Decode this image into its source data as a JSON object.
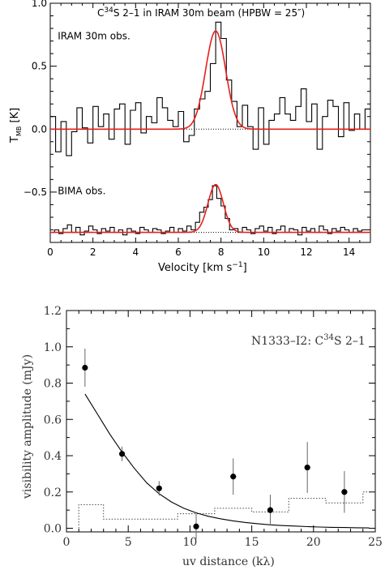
{
  "chart_data": [
    {
      "type": "line",
      "title": "C³⁴S 2–1 in IRAM 30m beam (HPBW = 25″)",
      "title_parts": {
        "pre": "C",
        "sup": "34",
        "post": "S 2–1 in IRAM 30m beam (HPBW = 25″)"
      },
      "xlabel": "Velocity [km s⁻¹]",
      "xlabel_parts": {
        "pre": "Velocity [km s",
        "sup": "−1",
        "post": "]"
      },
      "ylabel": "T_MB [K]",
      "ylabel_parts": {
        "main": "T",
        "sub": "MB",
        "post": " [K]"
      },
      "xlim": [
        0,
        15
      ],
      "ylim": [
        -0.9,
        1.0
      ],
      "x_ticks": [
        0,
        2,
        4,
        6,
        8,
        10,
        12,
        14
      ],
      "y_ticks": [
        {
          "v": 1.0,
          "label": "1.0"
        },
        {
          "v": 0.5,
          "label": "0.5"
        },
        {
          "v": 0.0,
          "label": "0.0"
        },
        {
          "v": -0.5,
          "label": "−0.5"
        }
      ],
      "annotations": [
        {
          "text": "IRAM 30m obs.",
          "x": 0.35,
          "y": 0.74
        },
        {
          "text": "BIMA obs.",
          "x": 0.35,
          "y": -0.49
        }
      ],
      "series": [
        {
          "role": "observed",
          "label": "IRAM 30m obs.",
          "color": "#000000",
          "x": [
            0.0,
            0.25,
            0.5,
            0.75,
            1.0,
            1.25,
            1.5,
            1.75,
            2.0,
            2.25,
            2.5,
            2.75,
            3.0,
            3.25,
            3.5,
            3.75,
            4.0,
            4.25,
            4.5,
            4.75,
            5.0,
            5.25,
            5.5,
            5.75,
            6.0,
            6.25,
            6.5,
            6.75,
            7.0,
            7.25,
            7.5,
            7.75,
            8.0,
            8.25,
            8.5,
            8.75,
            9.0,
            9.25,
            9.5,
            9.75,
            10.0,
            10.25,
            10.5,
            10.75,
            11.0,
            11.25,
            11.5,
            11.75,
            12.0,
            12.25,
            12.5,
            12.75,
            13.0,
            13.25,
            13.5,
            13.75,
            14.0,
            14.25,
            14.5,
            14.75
          ],
          "y": [
            0.1,
            -0.18,
            0.06,
            -0.21,
            -0.02,
            0.17,
            0.01,
            -0.11,
            0.18,
            0.02,
            0.12,
            -0.08,
            0.16,
            0.2,
            -0.12,
            0.15,
            0.21,
            -0.03,
            0.1,
            0.05,
            0.25,
            0.17,
            0.07,
            0.02,
            0.14,
            -0.1,
            -0.05,
            0.16,
            0.24,
            0.3,
            0.52,
            0.85,
            0.72,
            0.39,
            0.22,
            0.02,
            0.19,
            0.02,
            -0.16,
            0.17,
            -0.12,
            0.07,
            0.12,
            0.25,
            0.12,
            0.07,
            0.18,
            0.32,
            0.06,
            0.2,
            -0.16,
            0.1,
            0.23,
            0.18,
            -0.06,
            0.21,
            -0.01,
            0.12,
            0.0,
            0.16
          ]
        },
        {
          "role": "model",
          "label": "IRAM 30m model",
          "color": "#e8201c",
          "amplitude": 0.78,
          "center": 7.75,
          "fwhm": 1.1
        },
        {
          "role": "observed",
          "label": "BIMA obs.",
          "color": "#000000",
          "x": [
            0.0,
            0.2,
            0.4,
            0.6,
            0.8,
            1.0,
            1.2,
            1.4,
            1.6,
            1.8,
            2.0,
            2.2,
            2.4,
            2.6,
            2.8,
            3.0,
            3.2,
            3.4,
            3.6,
            3.8,
            4.0,
            4.2,
            4.4,
            4.6,
            4.8,
            5.0,
            5.2,
            5.4,
            5.6,
            5.8,
            6.0,
            6.2,
            6.4,
            6.6,
            6.8,
            7.0,
            7.2,
            7.4,
            7.6,
            7.8,
            8.0,
            8.2,
            8.4,
            8.6,
            8.8,
            9.0,
            9.2,
            9.4,
            9.6,
            9.8,
            10.0,
            10.2,
            10.4,
            10.6,
            10.8,
            11.0,
            11.2,
            11.4,
            11.6,
            11.8,
            12.0,
            12.2,
            12.4,
            12.6,
            12.8,
            13.0,
            13.2,
            13.4,
            13.6,
            13.8,
            14.0,
            14.2,
            14.4,
            14.6,
            14.8
          ],
          "y": [
            -0.82,
            -0.8,
            -0.83,
            -0.79,
            -0.76,
            -0.82,
            -0.78,
            -0.84,
            -0.81,
            -0.77,
            -0.8,
            -0.83,
            -0.79,
            -0.81,
            -0.78,
            -0.82,
            -0.8,
            -0.84,
            -0.79,
            -0.81,
            -0.83,
            -0.78,
            -0.8,
            -0.82,
            -0.79,
            -0.8,
            -0.83,
            -0.81,
            -0.78,
            -0.82,
            -0.79,
            -0.81,
            -0.77,
            -0.8,
            -0.74,
            -0.66,
            -0.62,
            -0.56,
            -0.45,
            -0.55,
            -0.61,
            -0.71,
            -0.8,
            -0.79,
            -0.82,
            -0.78,
            -0.8,
            -0.83,
            -0.79,
            -0.77,
            -0.81,
            -0.78,
            -0.83,
            -0.8,
            -0.77,
            -0.82,
            -0.79,
            -0.8,
            -0.84,
            -0.78,
            -0.81,
            -0.79,
            -0.82,
            -0.77,
            -0.8,
            -0.83,
            -0.79,
            -0.81,
            -0.78,
            -0.8,
            -0.82,
            -0.79,
            -0.81,
            -0.8,
            -0.8
          ]
        },
        {
          "role": "model",
          "label": "BIMA model",
          "color": "#e8201c",
          "baseline": -0.82,
          "amplitude": 0.38,
          "center": 7.75,
          "fwhm": 0.85
        }
      ],
      "baselines": [
        0.0,
        -0.82
      ],
      "grid": false
    },
    {
      "type": "scatter",
      "title": "N1333–I2: C³⁴S 2–1",
      "title_parts": {
        "pre": "N1333–I2: C",
        "sup": "34",
        "post": "S 2–1"
      },
      "xlabel": "uv distance (kλ)",
      "ylabel": "visibility amplitude (mJy)",
      "xlim": [
        0,
        25
      ],
      "ylim": [
        -0.02,
        1.2
      ],
      "x_ticks": [
        0,
        5,
        10,
        15,
        20,
        25
      ],
      "y_ticks": [
        0.0,
        0.2,
        0.4,
        0.6,
        0.8,
        1.0,
        1.2
      ],
      "y_tick_labels": [
        "0.0",
        "0.2",
        "0.4",
        "0.6",
        "0.8",
        "1.0",
        "1.2"
      ],
      "points": {
        "x": [
          1.5,
          4.5,
          7.5,
          10.5,
          13.5,
          16.5,
          19.5,
          22.5
        ],
        "y": [
          0.885,
          0.41,
          0.22,
          0.01,
          0.285,
          0.1,
          0.335,
          0.2
        ],
        "err": [
          0.105,
          0.04,
          0.04,
          0.07,
          0.1,
          0.085,
          0.14,
          0.115
        ]
      },
      "model_curve": {
        "x": [
          1.5,
          2.5,
          3.5,
          4.5,
          5.5,
          6.5,
          7.5,
          8.5,
          9.5,
          10.5,
          11.5,
          12.5,
          13.5,
          14.5,
          15.5,
          16.5,
          17.5,
          18.5,
          19.5,
          20.5,
          21.5,
          22.5,
          23.5,
          24.5
        ],
        "y": [
          0.74,
          0.63,
          0.52,
          0.42,
          0.33,
          0.25,
          0.19,
          0.145,
          0.11,
          0.085,
          0.066,
          0.052,
          0.041,
          0.032,
          0.025,
          0.019,
          0.015,
          0.012,
          0.009,
          0.007,
          0.005,
          0.004,
          0.003,
          0.002
        ]
      },
      "zero_signal": {
        "edges": [
          1,
          3,
          6,
          9,
          12,
          15,
          18,
          21,
          24
        ],
        "values": [
          0.13,
          0.05,
          0.05,
          0.08,
          0.11,
          0.09,
          0.165,
          0.14,
          0.2
        ]
      },
      "grid": false
    }
  ]
}
